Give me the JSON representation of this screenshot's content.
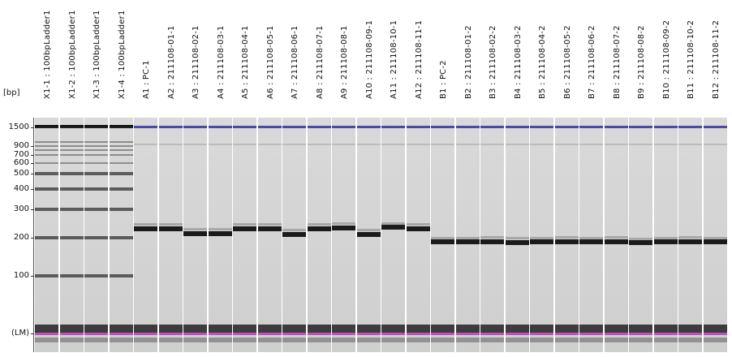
{
  "axis": {
    "unit_label": "[bp]",
    "ticks": [
      {
        "label": "1500",
        "bp": 1500
      },
      {
        "label": "900",
        "bp": 900
      },
      {
        "label": "700",
        "bp": 700
      },
      {
        "label": "600",
        "bp": 600
      },
      {
        "label": "500",
        "bp": 500
      },
      {
        "label": "400",
        "bp": 400
      },
      {
        "label": "300",
        "bp": 300
      },
      {
        "label": "200",
        "bp": 200
      },
      {
        "label": "100",
        "bp": 100
      },
      {
        "label": "(LM)",
        "bp": 15
      }
    ]
  },
  "lanes": [
    {
      "label": "X1-1 : 100bpLadder1",
      "type": "ladder",
      "main_bp": null
    },
    {
      "label": "X1-2 : 100bpLadder1",
      "type": "ladder",
      "main_bp": null
    },
    {
      "label": "X1-3 : 100bpLadder1",
      "type": "ladder",
      "main_bp": null
    },
    {
      "label": "X1-4 : 100bpLadder1",
      "type": "ladder",
      "main_bp": null
    },
    {
      "label": "A1 : PC-1",
      "type": "sample",
      "main_bp": 228
    },
    {
      "label": "A2 : 211108-01-1",
      "type": "sample",
      "main_bp": 228
    },
    {
      "label": "A3 : 211108-02-1",
      "type": "sample",
      "main_bp": 212
    },
    {
      "label": "A4 : 211108-03-1",
      "type": "sample",
      "main_bp": 212
    },
    {
      "label": "A5 : 211108-04-1",
      "type": "sample",
      "main_bp": 228
    },
    {
      "label": "A6 : 211108-05-1",
      "type": "sample",
      "main_bp": 228
    },
    {
      "label": "A7 : 211108-06-1",
      "type": "sample",
      "main_bp": 210
    },
    {
      "label": "A8 : 211108-07-1",
      "type": "sample",
      "main_bp": 228
    },
    {
      "label": "A9 : 211108-08-1",
      "type": "sample",
      "main_bp": 230
    },
    {
      "label": "A10 : 211108-09-1",
      "type": "sample",
      "main_bp": 210
    },
    {
      "label": "A11 : 211108-10-1",
      "type": "sample",
      "main_bp": 232
    },
    {
      "label": "A12 : 211108-11-1",
      "type": "sample",
      "main_bp": 228
    },
    {
      "label": "B1 : PC-2",
      "type": "sample",
      "main_bp": 185
    },
    {
      "label": "B2 : 211108-01-2",
      "type": "sample",
      "main_bp": 185
    },
    {
      "label": "B3 : 211108-02-2",
      "type": "sample",
      "main_bp": 186
    },
    {
      "label": "B4 : 211108-03-2",
      "type": "sample",
      "main_bp": 184
    },
    {
      "label": "B5 : 211108-04-2",
      "type": "sample",
      "main_bp": 185
    },
    {
      "label": "B6 : 211108-05-2",
      "type": "sample",
      "main_bp": 186
    },
    {
      "label": "B7 : 211108-06-2",
      "type": "sample",
      "main_bp": 185
    },
    {
      "label": "B8 : 211108-07-2",
      "type": "sample",
      "main_bp": 186
    },
    {
      "label": "B9 : 211108-08-2",
      "type": "sample",
      "main_bp": 183
    },
    {
      "label": "B10 : 211108-09-2",
      "type": "sample",
      "main_bp": 185
    },
    {
      "label": "B11 : 211108-10-2",
      "type": "sample",
      "main_bp": 186
    },
    {
      "label": "B12 : 211108-11-2",
      "type": "sample",
      "main_bp": 185
    }
  ],
  "ladder_bp": [
    1500,
    1000,
    900,
    800,
    700,
    600,
    500,
    400,
    300,
    200,
    100
  ],
  "colors": {
    "background": "#ffffff",
    "lane": "#d6d6d6",
    "band": "#111111",
    "upper_marker": "#3a3aa0",
    "lower_marker": "#c040c0"
  }
}
